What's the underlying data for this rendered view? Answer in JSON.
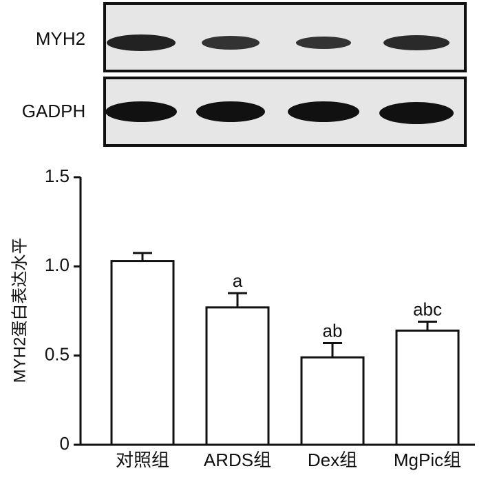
{
  "blot": {
    "labels": [
      "MYH2",
      "GADPH"
    ]
  },
  "chart_data": {
    "type": "bar",
    "y_label": "MYH2蛋白表达水平",
    "categories": [
      "对照组",
      "ARDS组",
      "Dex组",
      "MgPic组"
    ],
    "values": [
      1.03,
      0.77,
      0.49,
      0.64
    ],
    "errors": [
      0.045,
      0.08,
      0.08,
      0.05
    ],
    "annotations": [
      null,
      "a",
      "ab",
      "abc"
    ],
    "color": "#ffffff",
    "ylim": [
      0,
      1.5
    ],
    "yticks": [
      0,
      0.5,
      {
        "value": 1,
        "label": "1.0"
      },
      1.5
    ],
    "grid": false
  }
}
